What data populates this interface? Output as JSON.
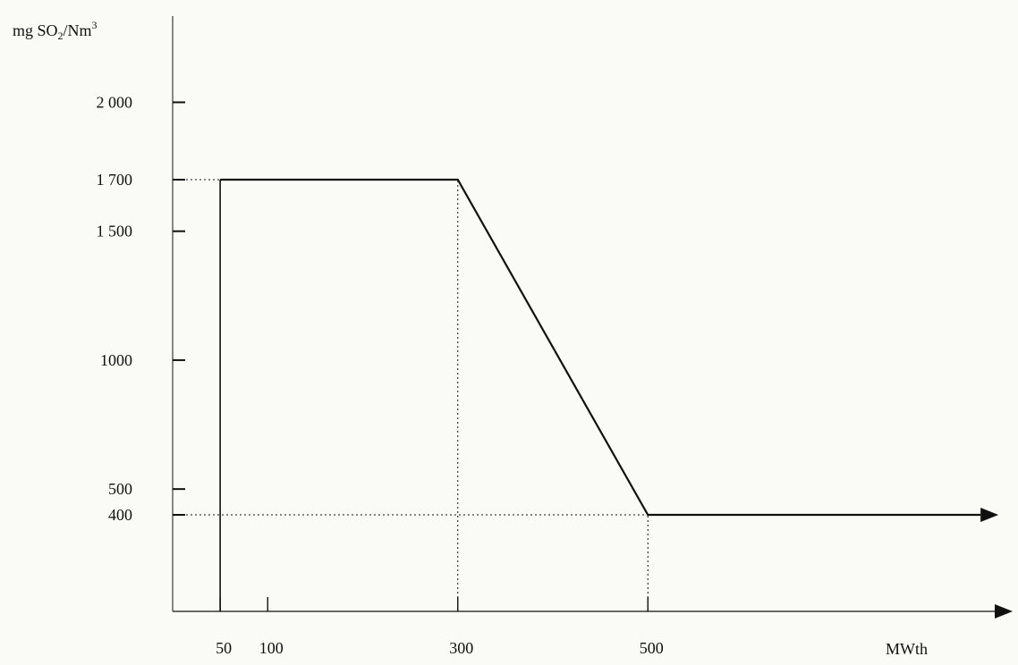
{
  "chart_data": {
    "type": "line",
    "title": "",
    "ylabel_parts": {
      "base": "mg SO",
      "sub": "2",
      "mid": "/Nm",
      "sup": "3"
    },
    "xlabel": "MWth",
    "y_ticks": [
      {
        "value": 2000,
        "label": "2 000"
      },
      {
        "value": 1700,
        "label": "1 700"
      },
      {
        "value": 1500,
        "label": "1 500"
      },
      {
        "value": 1000,
        "label": "1000"
      },
      {
        "value": 500,
        "label": "500"
      },
      {
        "value": 400,
        "label": "400"
      }
    ],
    "x_ticks": [
      {
        "value": 50,
        "label": "50"
      },
      {
        "value": 100,
        "label": "100"
      },
      {
        "value": 300,
        "label": "300"
      },
      {
        "value": 500,
        "label": "500"
      }
    ],
    "series": [
      {
        "points": [
          [
            50,
            1700
          ],
          [
            300,
            1700
          ],
          [
            500,
            400
          ],
          [
            850,
            400
          ]
        ]
      }
    ],
    "reference_lines": {
      "vertical": [
        {
          "x": 50,
          "y_top": 1700
        },
        {
          "x": 300,
          "y_top": 1700
        },
        {
          "x": 500,
          "y_top": 400
        }
      ],
      "horizontal": [
        {
          "y": 1700,
          "x_right": 50
        },
        {
          "y": 400,
          "x_right": 500
        }
      ]
    },
    "xlim": [
      0,
      880
    ],
    "ylim": [
      0,
      2300
    ],
    "colors": {
      "line": "#111111",
      "axis": "#111111",
      "background": "#fafaf6"
    }
  }
}
